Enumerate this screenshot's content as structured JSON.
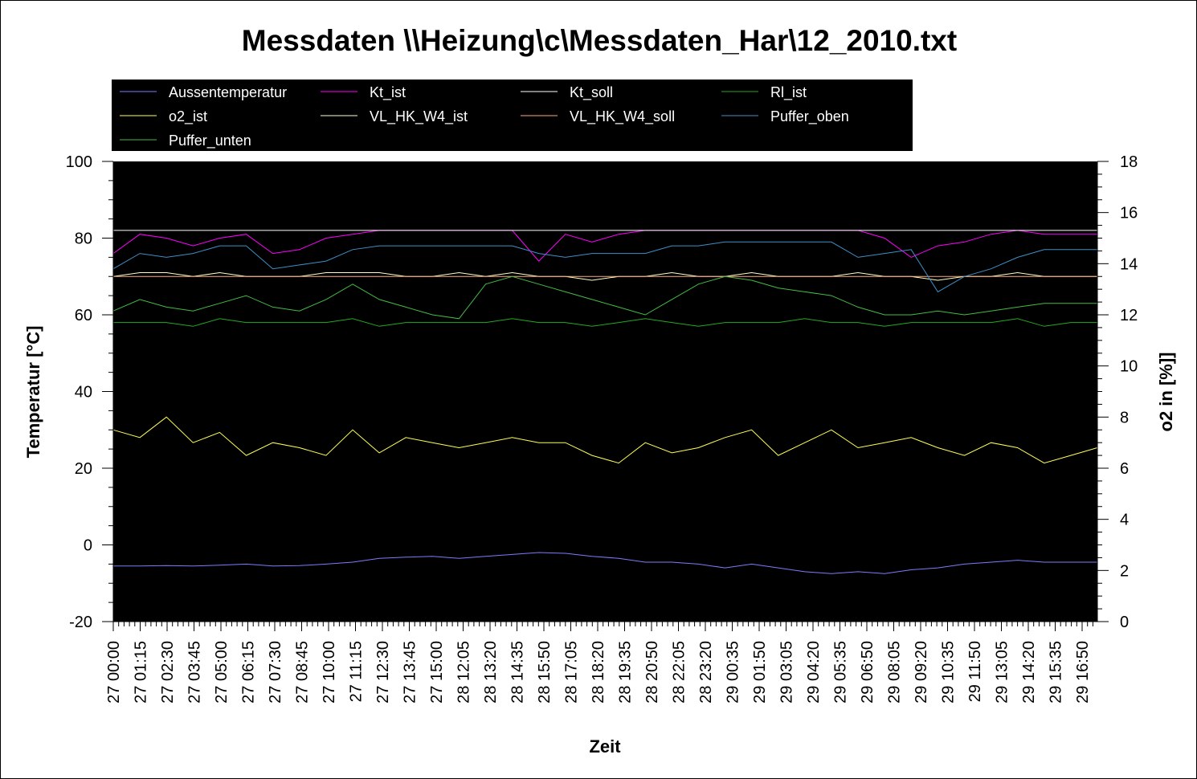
{
  "chart_data": {
    "type": "line",
    "title": "Messdaten \\\\Heizung\\c\\Messdaten_Har\\12_2010.txt",
    "xlabel": "Zeit",
    "ylabel": "Temperatur [°C]",
    "y2label": "o2 in [%]]",
    "ylim": [
      -20,
      100
    ],
    "y2lim": [
      0,
      18
    ],
    "yticks": [
      "-20",
      "0",
      "20",
      "40",
      "60",
      "80",
      "100"
    ],
    "y2ticks": [
      "0",
      "2",
      "4",
      "6",
      "8",
      "10",
      "12",
      "14",
      "16",
      "18"
    ],
    "grid": false,
    "legend_position": "top",
    "plot_background": "#000000",
    "x_ticks": [
      "27 00:00",
      "27 01:15",
      "27 02:30",
      "27 03:45",
      "27 05:00",
      "27 06:15",
      "27 07:30",
      "27 08:45",
      "27 10:00",
      "27 11:15",
      "27 12:30",
      "27 13:45",
      "27 15:00",
      "28 12:05",
      "28 13:20",
      "28 14:35",
      "28 15:50",
      "28 17:05",
      "28 18:20",
      "28 19:35",
      "28 20:50",
      "28 22:05",
      "28 23:20",
      "29 00:35",
      "29 01:50",
      "29 03:05",
      "29 04:20",
      "29 05:35",
      "29 06:50",
      "29 08:05",
      "29 09:20",
      "29 10:35",
      "29 11:50",
      "29 13:05",
      "29 14:20",
      "29 15:35",
      "29 16:50"
    ],
    "series": [
      {
        "name": "Aussentemperatur",
        "color": "#7b7bff",
        "axis": "left",
        "values": [
          -5.5,
          -5.5,
          -5.4,
          -5.5,
          -5.3,
          -5.0,
          -5.5,
          -5.4,
          -5.0,
          -4.5,
          -3.5,
          -3.2,
          -3.0,
          -3.5,
          -3.0,
          -2.5,
          -2.0,
          -2.2,
          -3.0,
          -3.5,
          -4.5,
          -4.5,
          -5.0,
          -6.0,
          -5.0,
          -6.0,
          -7.0,
          -7.5,
          -7.0,
          -7.5,
          -6.5,
          -6.0,
          -5.0,
          -4.5,
          -4.0,
          -4.5,
          -4.5,
          -4.5
        ]
      },
      {
        "name": "Kt_ist",
        "color": "#ff00ff",
        "axis": "left",
        "values": [
          76,
          81,
          80,
          78,
          80,
          81,
          76,
          77,
          80,
          81,
          82,
          82,
          82,
          82,
          82,
          82,
          74,
          81,
          79,
          81,
          82,
          82,
          82,
          82,
          82,
          82,
          82,
          82,
          82,
          80,
          75,
          78,
          79,
          81,
          82,
          81,
          81,
          81
        ]
      },
      {
        "name": "Kt_soll",
        "color": "#ffffff",
        "axis": "left",
        "values": [
          82,
          82,
          82,
          82,
          82,
          82,
          82,
          82,
          82,
          82,
          82,
          82,
          82,
          82,
          82,
          82,
          82,
          82,
          82,
          82,
          82,
          82,
          82,
          82,
          82,
          82,
          82,
          82,
          82,
          82,
          82,
          82,
          82,
          82,
          82,
          82,
          82,
          82
        ]
      },
      {
        "name": "Rl_ist",
        "color": "#22aa22",
        "axis": "left",
        "values": [
          58,
          58,
          58,
          57,
          59,
          58,
          58,
          58,
          58,
          59,
          57,
          58,
          58,
          58,
          58,
          59,
          58,
          58,
          57,
          58,
          59,
          58,
          57,
          58,
          58,
          58,
          59,
          58,
          58,
          57,
          58,
          58,
          58,
          58,
          59,
          57,
          58,
          58
        ]
      },
      {
        "name": "o2_ist",
        "color": "#ffff55",
        "axis": "right",
        "values": [
          7.5,
          7.2,
          8.0,
          7.0,
          7.4,
          6.5,
          7.0,
          6.8,
          6.5,
          7.5,
          6.6,
          7.2,
          7.0,
          6.8,
          7.0,
          7.2,
          7.0,
          7.0,
          6.5,
          6.2,
          7.0,
          6.6,
          6.8,
          7.2,
          7.5,
          6.5,
          7.0,
          7.5,
          6.8,
          7.0,
          7.2,
          6.8,
          6.5,
          7.0,
          6.8,
          6.2,
          6.5,
          6.8
        ]
      },
      {
        "name": "VL_HK_W4_ist",
        "color": "#ffffcc",
        "axis": "left",
        "values": [
          70,
          71,
          71,
          70,
          71,
          70,
          70,
          70,
          71,
          71,
          71,
          70,
          70,
          71,
          70,
          71,
          70,
          70,
          69,
          70,
          70,
          71,
          70,
          70,
          71,
          70,
          70,
          70,
          71,
          70,
          70,
          69,
          70,
          70,
          71,
          70,
          70,
          70
        ]
      },
      {
        "name": "VL_HK_W4_soll",
        "color": "#ffaa77",
        "axis": "left",
        "values": [
          70,
          70,
          70,
          70,
          70,
          70,
          70,
          70,
          70,
          70,
          70,
          70,
          70,
          70,
          70,
          70,
          70,
          70,
          70,
          70,
          70,
          70,
          70,
          70,
          70,
          70,
          70,
          70,
          70,
          70,
          70,
          70,
          70,
          70,
          70,
          70,
          70,
          70
        ]
      },
      {
        "name": "Puffer_oben",
        "color": "#3f8fc8",
        "axis": "left",
        "values": [
          72,
          76,
          75,
          76,
          78,
          78,
          72,
          73,
          74,
          77,
          78,
          78,
          78,
          78,
          78,
          78,
          76,
          75,
          76,
          76,
          76,
          78,
          78,
          79,
          79,
          79,
          79,
          79,
          75,
          76,
          77,
          66,
          70,
          72,
          75,
          77,
          77,
          77
        ]
      },
      {
        "name": "Puffer_unten",
        "color": "#44bb44",
        "axis": "left",
        "values": [
          61,
          64,
          62,
          61,
          63,
          65,
          62,
          61,
          64,
          68,
          64,
          62,
          60,
          59,
          68,
          70,
          68,
          66,
          64,
          62,
          60,
          64,
          68,
          70,
          69,
          67,
          66,
          65,
          62,
          60,
          60,
          61,
          60,
          61,
          62,
          63,
          63,
          63
        ]
      }
    ]
  }
}
